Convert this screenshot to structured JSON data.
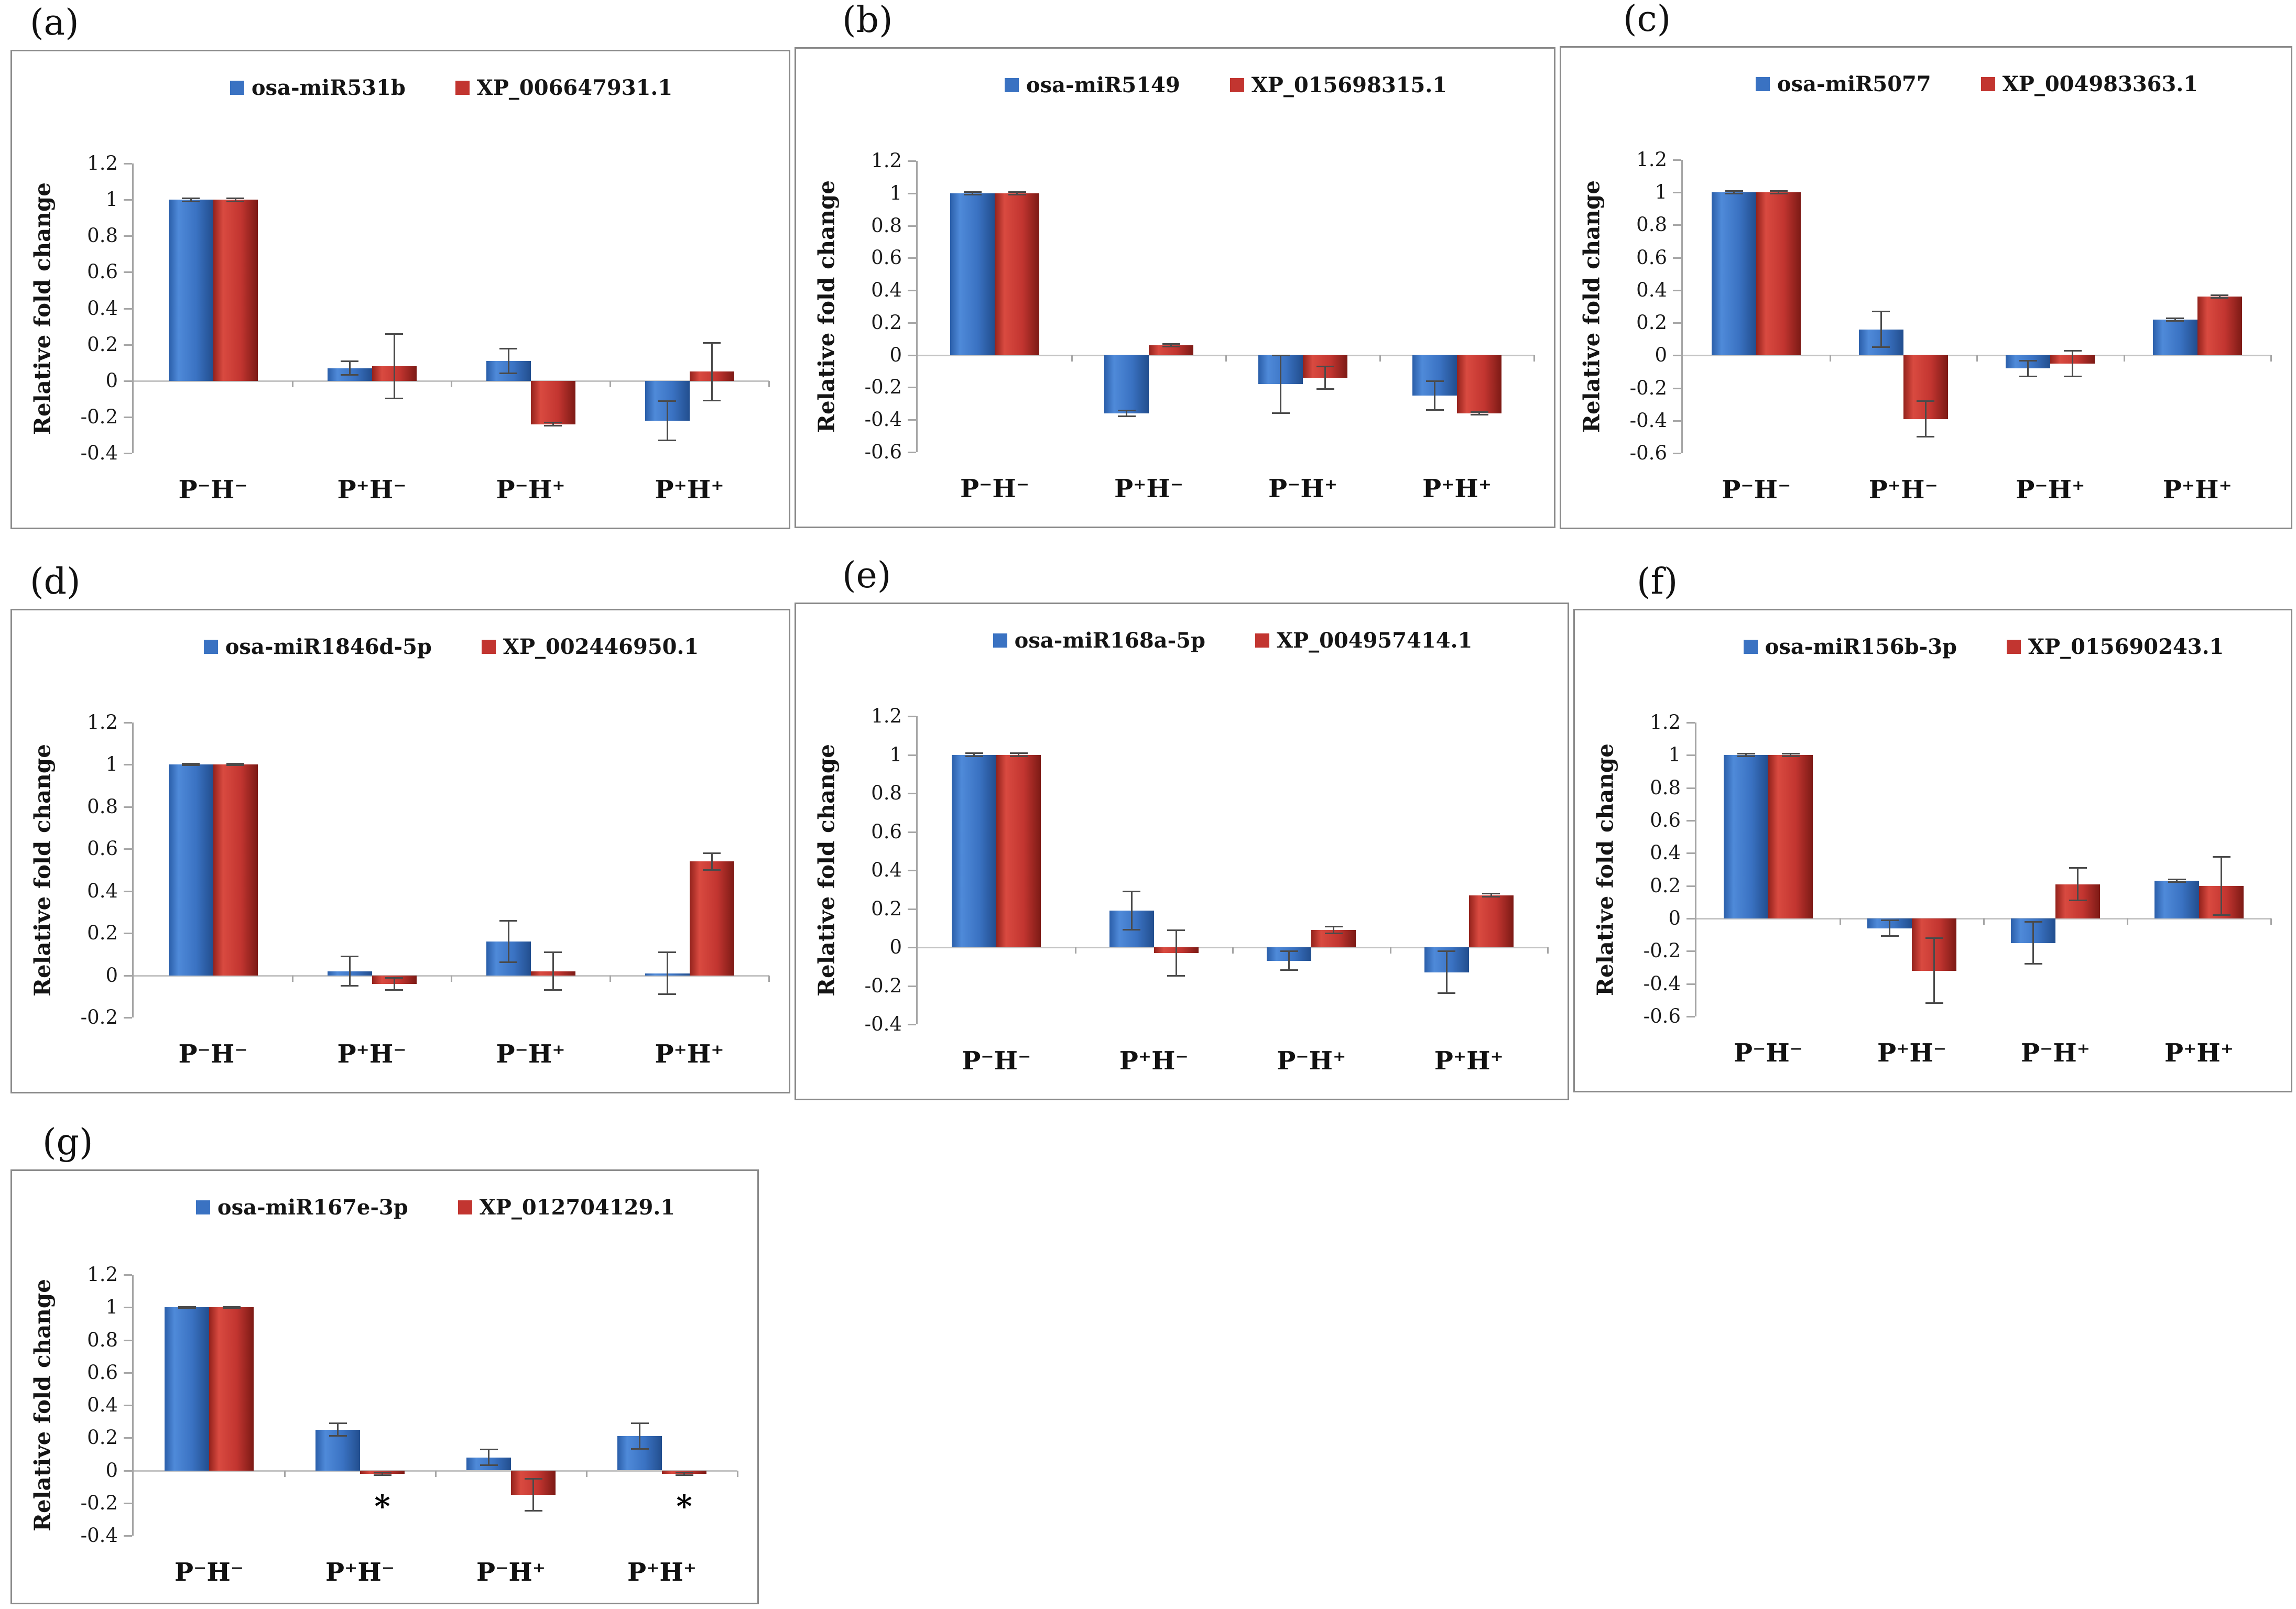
{
  "figure": {
    "ylabel": "Relative fold change",
    "categories": [
      "P⁻H⁻",
      "P⁺H⁻",
      "P⁻H⁺",
      "P⁺H⁺"
    ],
    "colors": {
      "mirna_blue": "#3a72c2",
      "target_red": "#c23530",
      "error_bar": "#4a4a4a",
      "axis": "#a6a6a6",
      "zero_line": "#c4c4c4",
      "panel_border": "#8a8a8a"
    }
  },
  "chart_data": [
    {
      "panel": "(a)",
      "type": "bar",
      "ylabel": "Relative fold change",
      "categories": [
        "P⁻H⁻",
        "P⁺H⁻",
        "P⁻H⁺",
        "P⁺H⁺"
      ],
      "ylim": [
        -0.4,
        1.2
      ],
      "ytick_step": 0.2,
      "legend_position": "top",
      "grid": false,
      "series": [
        {
          "name": "osa-miR531b",
          "color_key": "mirna_blue",
          "values": [
            1.0,
            0.07,
            0.11,
            -0.22
          ],
          "errors": [
            0.01,
            0.04,
            0.07,
            0.11
          ]
        },
        {
          "name": "XP_006647931.1",
          "color_key": "target_red",
          "values": [
            1.0,
            0.08,
            -0.24,
            0.05
          ],
          "errors": [
            0.01,
            0.18,
            0.01,
            0.16
          ]
        }
      ],
      "annotations": []
    },
    {
      "panel": "(b)",
      "type": "bar",
      "ylabel": "Relative fold change",
      "categories": [
        "P⁻H⁻",
        "P⁺H⁻",
        "P⁻H⁺",
        "P⁺H⁺"
      ],
      "ylim": [
        -0.6,
        1.2
      ],
      "ytick_step": 0.2,
      "legend_position": "top",
      "grid": false,
      "series": [
        {
          "name": "osa-miR5149",
          "color_key": "mirna_blue",
          "values": [
            1.0,
            -0.36,
            -0.18,
            -0.25
          ],
          "errors": [
            0.01,
            0.02,
            0.18,
            0.09
          ]
        },
        {
          "name": "XP_015698315.1",
          "color_key": "target_red",
          "values": [
            1.0,
            0.06,
            -0.14,
            -0.36
          ],
          "errors": [
            0.01,
            0.01,
            0.07,
            0.01
          ]
        }
      ],
      "annotations": []
    },
    {
      "panel": "(c)",
      "type": "bar",
      "ylabel": "Relative fold change",
      "categories": [
        "P⁻H⁻",
        "P⁺H⁻",
        "P⁻H⁺",
        "P⁺H⁺"
      ],
      "ylim": [
        -0.6,
        1.2
      ],
      "ytick_step": 0.2,
      "legend_position": "top",
      "grid": false,
      "series": [
        {
          "name": "osa-miR5077",
          "color_key": "mirna_blue",
          "values": [
            1.0,
            0.16,
            -0.08,
            0.22
          ],
          "errors": [
            0.01,
            0.11,
            0.05,
            0.01
          ]
        },
        {
          "name": "XP_004983363.1",
          "color_key": "target_red",
          "values": [
            1.0,
            -0.39,
            -0.05,
            0.36
          ],
          "errors": [
            0.01,
            0.11,
            0.08,
            0.01
          ]
        }
      ],
      "annotations": []
    },
    {
      "panel": "(d)",
      "type": "bar",
      "ylabel": "Relative fold change",
      "categories": [
        "P⁻H⁻",
        "P⁺H⁻",
        "P⁻H⁺",
        "P⁺H⁺"
      ],
      "ylim": [
        -0.2,
        1.2
      ],
      "ytick_step": 0.2,
      "legend_position": "top",
      "grid": false,
      "series": [
        {
          "name": "osa-miR1846d-5p",
          "color_key": "mirna_blue",
          "values": [
            1.0,
            0.02,
            0.16,
            0.01
          ],
          "errors": [
            0.005,
            0.07,
            0.1,
            0.1
          ]
        },
        {
          "name": "XP_002446950.1",
          "color_key": "target_red",
          "values": [
            1.0,
            -0.04,
            0.02,
            0.54
          ],
          "errors": [
            0.005,
            0.03,
            0.09,
            0.04
          ]
        }
      ],
      "annotations": []
    },
    {
      "panel": "(e)",
      "type": "bar",
      "ylabel": "Relative fold change",
      "categories": [
        "P⁻H⁻",
        "P⁺H⁻",
        "P⁻H⁺",
        "P⁺H⁺"
      ],
      "ylim": [
        -0.4,
        1.2
      ],
      "ytick_step": 0.2,
      "legend_position": "top",
      "grid": false,
      "series": [
        {
          "name": "osa-miR168a-5p",
          "color_key": "mirna_blue",
          "values": [
            1.0,
            0.19,
            -0.07,
            -0.13
          ],
          "errors": [
            0.01,
            0.1,
            0.05,
            0.11
          ]
        },
        {
          "name": "XP_004957414.1",
          "color_key": "target_red",
          "values": [
            1.0,
            -0.03,
            0.09,
            0.27
          ],
          "errors": [
            0.01,
            0.12,
            0.02,
            0.01
          ]
        }
      ],
      "annotations": []
    },
    {
      "panel": "(f)",
      "type": "bar",
      "ylabel": "Relative fold change",
      "categories": [
        "P⁻H⁻",
        "P⁺H⁻",
        "P⁻H⁺",
        "P⁺H⁺"
      ],
      "ylim": [
        -0.6,
        1.2
      ],
      "ytick_step": 0.2,
      "legend_position": "top",
      "grid": false,
      "series": [
        {
          "name": "osa-miR156b-3p",
          "color_key": "mirna_blue",
          "values": [
            1.0,
            -0.06,
            -0.15,
            0.23
          ],
          "errors": [
            0.01,
            0.05,
            0.13,
            0.01
          ]
        },
        {
          "name": "XP_015690243.1",
          "color_key": "target_red",
          "values": [
            1.0,
            -0.32,
            0.21,
            0.2
          ],
          "errors": [
            0.01,
            0.2,
            0.1,
            0.18
          ]
        }
      ],
      "annotations": []
    },
    {
      "panel": "(g)",
      "type": "bar",
      "ylabel": "Relative fold change",
      "categories": [
        "P⁻H⁻",
        "P⁺H⁻",
        "P⁻H⁺",
        "P⁺H⁺"
      ],
      "ylim": [
        -0.4,
        1.2
      ],
      "ytick_step": 0.2,
      "legend_position": "top",
      "grid": false,
      "series": [
        {
          "name": "osa-miR167e-3p",
          "color_key": "mirna_blue",
          "values": [
            1.0,
            0.25,
            0.08,
            0.21
          ],
          "errors": [
            0.005,
            0.04,
            0.05,
            0.08
          ]
        },
        {
          "name": "XP_012704129.1",
          "color_key": "target_red",
          "values": [
            1.0,
            -0.02,
            -0.15,
            -0.02
          ],
          "errors": [
            0.005,
            0.01,
            0.1,
            0.01
          ]
        }
      ],
      "annotations": [
        {
          "category_index": 1,
          "series_index": 1,
          "text": "*"
        },
        {
          "category_index": 3,
          "series_index": 1,
          "text": "*"
        }
      ]
    }
  ]
}
